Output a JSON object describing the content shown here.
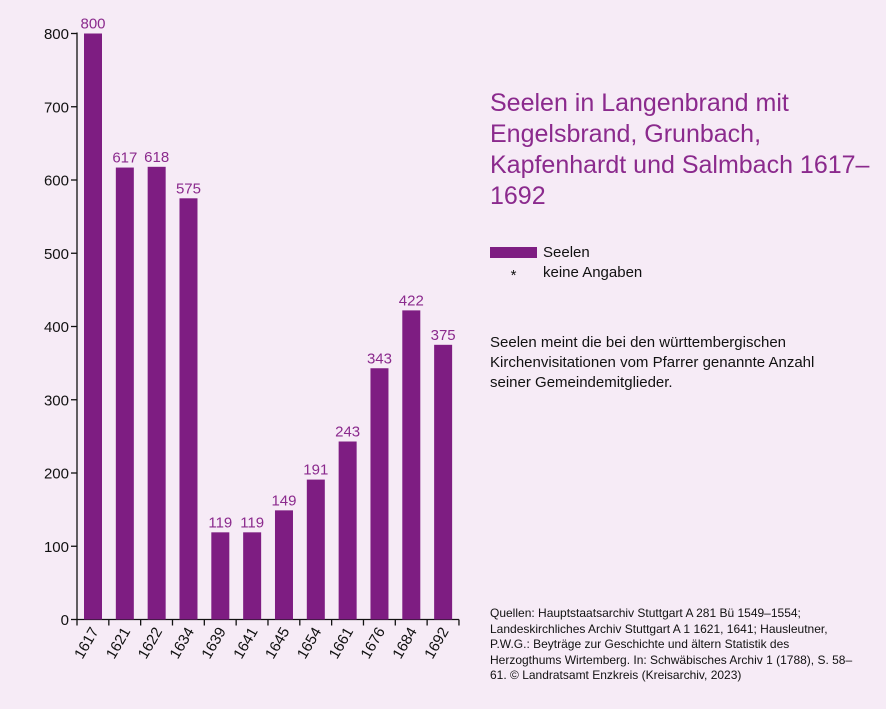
{
  "title": "Seelen in Langenbrand mit Engelsbrand, Grunbach, Kapfenhardt und Salmbach 1617–1692",
  "legend": {
    "series_label": "Seelen",
    "no_data_symbol": "*",
    "no_data_label": "keine Angaben"
  },
  "note": "Seelen meint die bei den württembergischen Kirchenvisitationen vom Pfarrer genannte Anzahl seiner Gemeindemitglieder.",
  "sources": "Quellen: Hauptstaatsarchiv Stuttgart A 281 Bü 1549–1554; Landeskirchliches Archiv Stuttgart A 1 1621, 1641; Hausleutner, P.W.G.: Beyträge zur Geschichte und ältern Statistik des Herzogthums Wirtemberg. In: Schwäbisches Archiv 1 (1788), S. 58–61. © Landratsamt Enzkreis (Kreisarchiv, 2023)",
  "colors": {
    "bar": "#7e1d82",
    "label": "#8b2a8d",
    "background": "#f6ebf6"
  },
  "chart_data": {
    "type": "bar",
    "categories": [
      "1617",
      "1621",
      "1622",
      "1634",
      "1639",
      "1641",
      "1645",
      "1654",
      "1661",
      "1676",
      "1684",
      "1692"
    ],
    "series": [
      {
        "name": "Seelen",
        "values": [
          800,
          617,
          618,
          575,
          119,
          119,
          149,
          191,
          243,
          343,
          422,
          375
        ]
      }
    ],
    "ylim": [
      0,
      800
    ],
    "yticks": [
      0,
      100,
      200,
      300,
      400,
      500,
      600,
      700,
      800
    ],
    "data_labels": true,
    "grid": false,
    "legend_position": "right"
  }
}
